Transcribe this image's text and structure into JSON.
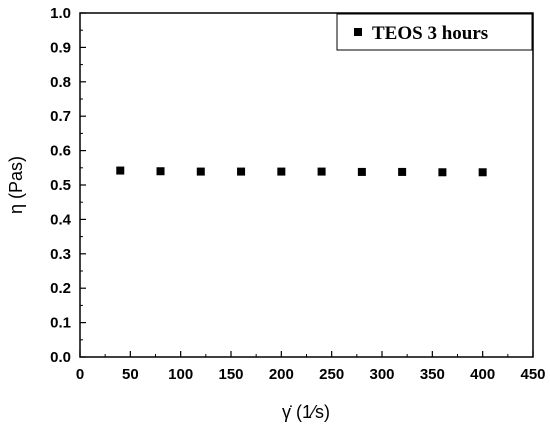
{
  "chart_data": {
    "type": "scatter",
    "title": "",
    "xlabel": "γ̇ (1⁄s)",
    "ylabel": "η (Pas)",
    "xlim": [
      0,
      450
    ],
    "ylim": [
      0.0,
      1.0
    ],
    "x_ticks": [
      "0",
      "50",
      "100",
      "150",
      "200",
      "250",
      "300",
      "350",
      "400",
      "450"
    ],
    "y_ticks": [
      "0.0",
      "0.1",
      "0.2",
      "0.3",
      "0.4",
      "0.5",
      "0.6",
      "0.7",
      "0.8",
      "0.9",
      "1.0"
    ],
    "grid": false,
    "legend_position": "top-right",
    "series": [
      {
        "name": "TEOS 3 hours",
        "color": "#000000",
        "marker": "square",
        "x": [
          40,
          80,
          120,
          160,
          200,
          240,
          280,
          320,
          360,
          400
        ],
        "y": [
          0.542,
          0.54,
          0.539,
          0.539,
          0.539,
          0.539,
          0.538,
          0.538,
          0.537,
          0.537
        ]
      }
    ]
  }
}
